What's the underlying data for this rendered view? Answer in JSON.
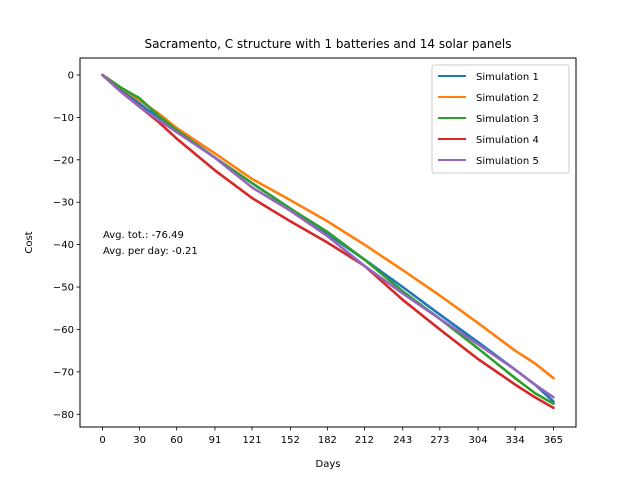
{
  "chart_data": {
    "type": "line",
    "title": "Sacramento, C structure with 1 batteries and 14 solar panels",
    "xlabel": "Days",
    "ylabel": "Cost",
    "xlim": [
      -18.25,
      383.25
    ],
    "ylim": [
      -83,
      4
    ],
    "xticks": [
      0,
      30,
      60,
      91,
      121,
      152,
      182,
      212,
      243,
      273,
      304,
      334,
      365
    ],
    "yticks": [
      0,
      -10,
      -20,
      -30,
      -40,
      -50,
      -60,
      -70,
      -80
    ],
    "legend_position": "top-right",
    "annotations": [
      "Avg. tot.: -76.49",
      "Avg. per day: -0.21"
    ],
    "series": [
      {
        "name": "Simulation 1",
        "color": "#1f77b4",
        "x": [
          0,
          15,
          30,
          45,
          60,
          91,
          121,
          152,
          182,
          212,
          243,
          273,
          304,
          334,
          350,
          365
        ],
        "y": [
          0,
          -3.5,
          -6.8,
          -10,
          -13,
          -19.5,
          -25.5,
          -31.5,
          -37.5,
          -43.5,
          -50,
          -56.5,
          -63,
          -69.5,
          -73,
          -77
        ]
      },
      {
        "name": "Simulation 2",
        "color": "#ff7f0e",
        "x": [
          0,
          15,
          30,
          45,
          60,
          91,
          121,
          152,
          182,
          212,
          243,
          273,
          304,
          334,
          350,
          365
        ],
        "y": [
          0,
          -3,
          -6,
          -9,
          -12.5,
          -18.5,
          -24.5,
          -29.5,
          -34.5,
          -40,
          -46,
          -52,
          -58.5,
          -65,
          -68,
          -71.5
        ]
      },
      {
        "name": "Simulation 3",
        "color": "#2ca02c",
        "x": [
          0,
          15,
          30,
          45,
          60,
          91,
          121,
          152,
          182,
          212,
          243,
          273,
          304,
          334,
          350,
          365
        ],
        "y": [
          0,
          -3,
          -5.5,
          -9.5,
          -13,
          -19.5,
          -25.5,
          -31.5,
          -37,
          -43.5,
          -51,
          -57.5,
          -64.5,
          -71.5,
          -75,
          -77.5
        ]
      },
      {
        "name": "Simulation 4",
        "color": "#d62728",
        "x": [
          0,
          15,
          30,
          45,
          60,
          91,
          121,
          152,
          182,
          212,
          243,
          273,
          304,
          334,
          350,
          365
        ],
        "y": [
          0,
          -4,
          -7.5,
          -11,
          -15,
          -22.5,
          -29,
          -34.5,
          -39.5,
          -45,
          -53,
          -60,
          -67,
          -73,
          -76,
          -78.5
        ]
      },
      {
        "name": "Simulation 5",
        "color": "#9467bd",
        "x": [
          0,
          15,
          30,
          45,
          60,
          91,
          121,
          152,
          182,
          212,
          243,
          273,
          304,
          334,
          350,
          365
        ],
        "y": [
          0,
          -4,
          -7.5,
          -10.5,
          -13.5,
          -19.5,
          -26.5,
          -32,
          -38,
          -45,
          -51.5,
          -57.5,
          -63.5,
          -69.5,
          -73,
          -76
        ]
      }
    ]
  }
}
